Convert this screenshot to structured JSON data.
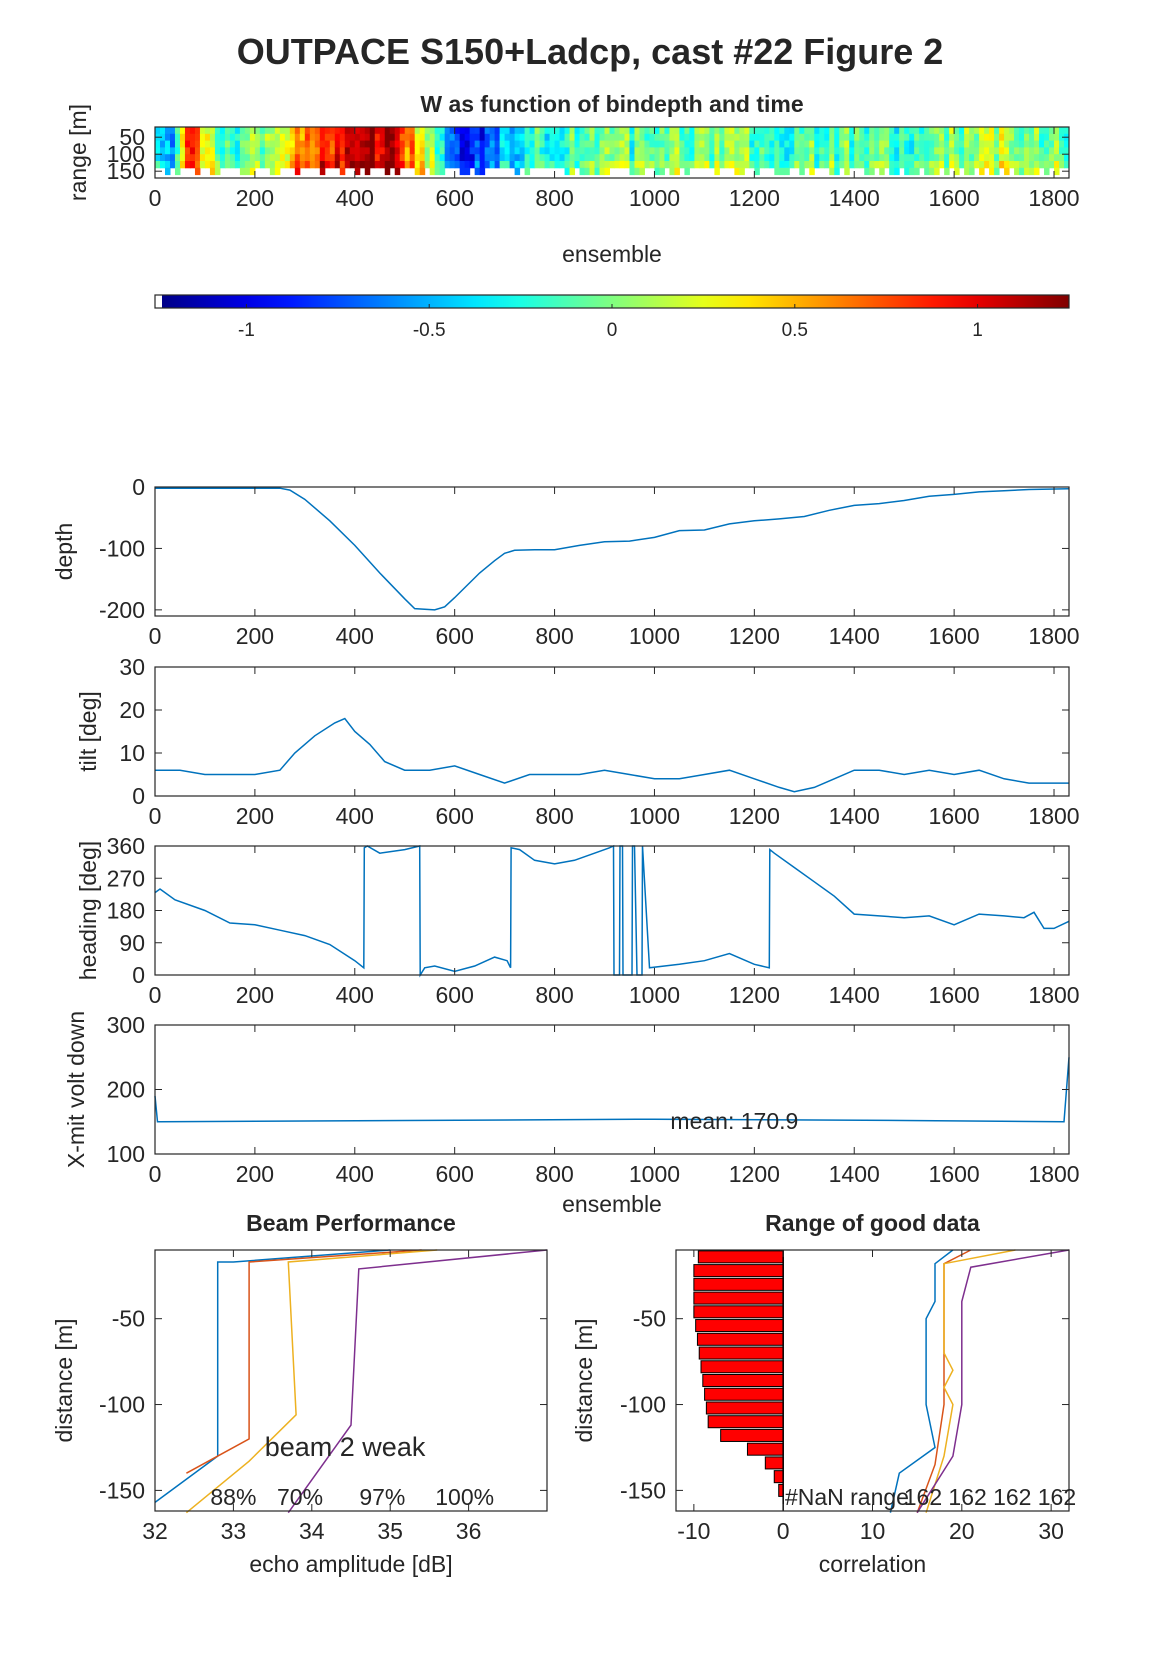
{
  "figure": {
    "title": "OUTPACE S150+Ladcp, cast #22 Figure 2"
  },
  "colors": {
    "line": "#0072BD",
    "beam": [
      "#0072BD",
      "#D95319",
      "#EDB120",
      "#7E2F8E"
    ],
    "bar_fill": "#FF0000",
    "axis": "#262626"
  },
  "chart_data": [
    {
      "id": "w_image",
      "type": "heatmap",
      "title": "W as function of bindepth and time",
      "xlabel": "ensemble",
      "ylabel": "range [m]",
      "xlim": [
        0,
        1830
      ],
      "ylim": [
        20,
        170
      ],
      "y_reversed": true,
      "xticks": [
        0,
        200,
        400,
        600,
        800,
        1000,
        1200,
        1400,
        1600,
        1800
      ],
      "yticks": [
        50,
        100,
        150
      ],
      "colormap": "jet",
      "clim": [
        -1.25,
        1.25
      ],
      "coarse_w_by_ensemble": [
        {
          "x": 0,
          "w": -0.3
        },
        {
          "x": 30,
          "w": -0.6
        },
        {
          "x": 60,
          "w": 1.0
        },
        {
          "x": 90,
          "w": 0.3
        },
        {
          "x": 150,
          "w": -0.2
        },
        {
          "x": 220,
          "w": 0.1
        },
        {
          "x": 290,
          "w": 0.6
        },
        {
          "x": 350,
          "w": 0.9
        },
        {
          "x": 420,
          "w": 1.2
        },
        {
          "x": 480,
          "w": 1.0
        },
        {
          "x": 530,
          "w": 0.3
        },
        {
          "x": 580,
          "w": -0.5
        },
        {
          "x": 630,
          "w": -1.0
        },
        {
          "x": 680,
          "w": -0.6
        },
        {
          "x": 760,
          "w": -0.2
        },
        {
          "x": 900,
          "w": -0.1
        },
        {
          "x": 1100,
          "w": 0.0
        },
        {
          "x": 1300,
          "w": -0.1
        },
        {
          "x": 1500,
          "w": -0.1
        },
        {
          "x": 1700,
          "w": 0.1
        },
        {
          "x": 1830,
          "w": 0.0
        }
      ]
    },
    {
      "id": "colorbar",
      "type": "colorbar",
      "colormap": "jet",
      "clim": [
        -1.25,
        1.25
      ],
      "ticks": [
        -1,
        -0.5,
        0,
        0.5,
        1
      ],
      "tick_labels": [
        "-1",
        "-0.5",
        "0",
        "0.5",
        "1"
      ]
    },
    {
      "id": "depth",
      "type": "line",
      "xlabel": "",
      "ylabel": "depth",
      "xlim": [
        0,
        1830
      ],
      "ylim": [
        -210,
        0
      ],
      "xticks": [
        0,
        200,
        400,
        600,
        800,
        1000,
        1200,
        1400,
        1600,
        1800
      ],
      "yticks": [
        0,
        -100,
        -200
      ],
      "x": [
        0,
        250,
        270,
        300,
        350,
        400,
        450,
        500,
        520,
        560,
        580,
        600,
        650,
        680,
        700,
        720,
        760,
        800,
        850,
        900,
        950,
        1000,
        1050,
        1100,
        1150,
        1200,
        1250,
        1300,
        1350,
        1400,
        1450,
        1500,
        1550,
        1600,
        1650,
        1700,
        1750,
        1830
      ],
      "y": [
        -2,
        -2,
        -5,
        -20,
        -55,
        -95,
        -140,
        -182,
        -198,
        -200,
        -195,
        -180,
        -140,
        -120,
        -108,
        -103,
        -102,
        -102,
        -95,
        -89,
        -88,
        -82,
        -71,
        -70,
        -60,
        -55,
        -52,
        -48,
        -38,
        -30,
        -27,
        -22,
        -15,
        -12,
        -8,
        -6,
        -4,
        -3
      ]
    },
    {
      "id": "tilt",
      "type": "line",
      "ylabel": "tilt [deg]",
      "xlim": [
        0,
        1830
      ],
      "ylim": [
        0,
        30
      ],
      "xticks": [
        0,
        200,
        400,
        600,
        800,
        1000,
        1200,
        1400,
        1600,
        1800
      ],
      "yticks": [
        0,
        10,
        20,
        30
      ],
      "x": [
        0,
        50,
        100,
        150,
        200,
        250,
        280,
        320,
        360,
        380,
        400,
        430,
        460,
        500,
        550,
        600,
        650,
        700,
        750,
        800,
        850,
        900,
        950,
        1000,
        1050,
        1100,
        1150,
        1200,
        1250,
        1280,
        1320,
        1360,
        1400,
        1450,
        1500,
        1550,
        1600,
        1650,
        1700,
        1750,
        1800,
        1830
      ],
      "y": [
        6,
        6,
        5,
        5,
        5,
        6,
        10,
        14,
        17,
        18,
        15,
        12,
        8,
        6,
        6,
        7,
        5,
        3,
        5,
        5,
        5,
        6,
        5,
        4,
        4,
        5,
        6,
        4,
        2,
        1,
        2,
        4,
        6,
        6,
        5,
        6,
        5,
        6,
        4,
        3,
        3,
        3
      ]
    },
    {
      "id": "heading",
      "type": "line",
      "ylabel": "heading [deg]",
      "xlim": [
        0,
        1830
      ],
      "ylim": [
        0,
        360
      ],
      "xticks": [
        0,
        200,
        400,
        600,
        800,
        1000,
        1200,
        1400,
        1600,
        1800
      ],
      "yticks": [
        0,
        90,
        180,
        270,
        360
      ],
      "x": [
        0,
        10,
        40,
        100,
        150,
        200,
        250,
        300,
        350,
        400,
        418,
        419,
        425,
        450,
        500,
        530,
        531,
        540,
        560,
        600,
        640,
        680,
        705,
        712,
        713,
        730,
        760,
        800,
        840,
        880,
        910,
        918,
        919,
        925,
        930,
        931,
        936,
        937,
        950,
        955,
        956,
        960,
        965,
        970,
        975,
        976,
        990,
        1050,
        1100,
        1150,
        1200,
        1230,
        1231,
        1240,
        1280,
        1320,
        1360,
        1400,
        1450,
        1500,
        1550,
        1600,
        1650,
        1700,
        1740,
        1760,
        1780,
        1800,
        1830
      ],
      "y": [
        230,
        240,
        210,
        180,
        145,
        140,
        125,
        110,
        85,
        40,
        20,
        355,
        360,
        340,
        350,
        360,
        0,
        20,
        25,
        10,
        25,
        50,
        40,
        20,
        355,
        350,
        320,
        310,
        320,
        340,
        355,
        360,
        0,
        0,
        0,
        360,
        360,
        0,
        0,
        0,
        360,
        360,
        0,
        0,
        0,
        360,
        20,
        30,
        40,
        60,
        30,
        20,
        350,
        340,
        300,
        260,
        220,
        170,
        165,
        160,
        165,
        140,
        170,
        165,
        160,
        175,
        130,
        130,
        150
      ]
    },
    {
      "id": "xmit",
      "type": "line",
      "xlabel": "ensemble",
      "ylabel": "X-mit volt down",
      "xlim": [
        0,
        1830
      ],
      "ylim": [
        100,
        300
      ],
      "xticks": [
        0,
        200,
        400,
        600,
        800,
        1000,
        1200,
        1400,
        1600,
        1800
      ],
      "yticks": [
        100,
        200,
        300
      ],
      "x": [
        0,
        5,
        10,
        500,
        1000,
        1500,
        1820,
        1825,
        1830
      ],
      "y": [
        190,
        150,
        150,
        152,
        154,
        152,
        150,
        200,
        250
      ],
      "annotation": "mean: 170.9"
    },
    {
      "id": "beam_performance",
      "type": "line",
      "title": "Beam Performance",
      "xlabel": "echo amplitude [dB]",
      "ylabel": "distance [m]",
      "xlim": [
        32,
        37
      ],
      "ylim": [
        -162,
        -10
      ],
      "xticks": [
        32,
        33,
        34,
        35,
        36
      ],
      "yticks": [
        -50,
        -100,
        -150
      ],
      "series": [
        {
          "x": [
            35.0,
            33.0,
            32.8,
            32.8,
            32.0
          ],
          "y": [
            -10,
            -17,
            -17,
            -130,
            -157
          ]
        },
        {
          "x": [
            35.4,
            33.2,
            33.2,
            33.2,
            32.4
          ],
          "y": [
            -10,
            -17,
            -17,
            -120,
            -140
          ]
        },
        {
          "x": [
            35.6,
            33.7,
            33.7,
            33.8,
            33.2,
            32.4
          ],
          "y": [
            -10,
            -17,
            -17,
            -106,
            -133,
            -163
          ]
        },
        {
          "x": [
            37.0,
            34.6,
            34.6,
            34.5,
            33.7
          ],
          "y": [
            -10,
            -21,
            -21,
            -112,
            -163
          ]
        }
      ],
      "annotations": [
        "beam 2 weak",
        "88%",
        "70%",
        "97%",
        "100%"
      ]
    },
    {
      "id": "range_good_data",
      "type": "bar",
      "title": "Range of good data",
      "xlabel": "correlation",
      "ylabel": "distance [m]",
      "xlim": [
        -12,
        32
      ],
      "ylim": [
        -162,
        -10
      ],
      "xticks": [
        -10,
        0,
        10,
        20,
        30
      ],
      "yticks": [
        -50,
        -100,
        -150
      ],
      "bars_y": [
        -14,
        -22,
        -30,
        -38,
        -46,
        -54,
        -62,
        -70,
        -78,
        -86,
        -94,
        -102,
        -110,
        -118,
        -126,
        -134,
        -142,
        -150
      ],
      "bars_x": [
        -9.5,
        -10,
        -10,
        -10,
        -10,
        -9.8,
        -9.6,
        -9.4,
        -9.2,
        -9.0,
        -8.8,
        -8.6,
        -8.4,
        -7,
        -4,
        -2,
        -1,
        -0.5
      ],
      "series": [
        {
          "x": [
            19,
            17,
            17,
            16,
            16,
            17,
            13,
            12
          ],
          "y": [
            -10,
            -18,
            -40,
            -50,
            -100,
            -125,
            -140,
            -163
          ]
        },
        {
          "x": [
            21,
            18,
            18,
            18,
            17,
            15
          ],
          "y": [
            -10,
            -18,
            -40,
            -100,
            -135,
            -163
          ]
        },
        {
          "x": [
            26,
            18,
            18,
            19,
            18,
            19,
            18,
            16
          ],
          "y": [
            -10,
            -18,
            -70,
            -80,
            -90,
            -100,
            -130,
            -163
          ]
        },
        {
          "x": [
            32,
            21,
            20,
            20,
            19,
            15
          ],
          "y": [
            -10,
            -20,
            -40,
            -100,
            -130,
            -163
          ]
        }
      ],
      "annotation": "#NaN range",
      "nan_counts": [
        "162",
        "162",
        "162",
        "162"
      ]
    }
  ]
}
